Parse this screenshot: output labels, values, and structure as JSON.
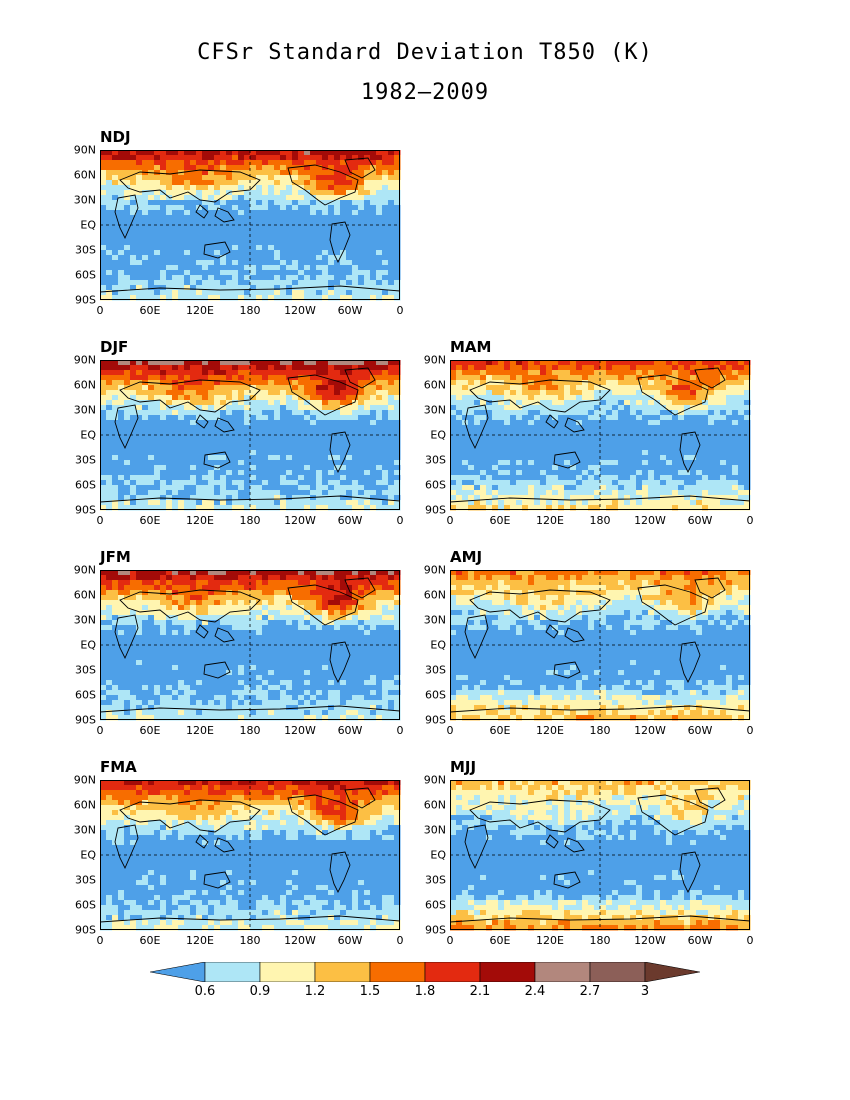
{
  "title": {
    "line1": "CFSr Standard Deviation T850 (K)",
    "line2": "1982–2009"
  },
  "axes": {
    "lat_ticks": [
      "90N",
      "60N",
      "30N",
      "EQ",
      "30S",
      "60S",
      "90S"
    ],
    "lon_ticks": [
      "0",
      "60E",
      "120E",
      "180",
      "120W",
      "60W",
      "0"
    ]
  },
  "panels": [
    {
      "label": "NDJ",
      "warmth": 0.9,
      "south_band": 0.3
    },
    {
      "label": "DJF",
      "warmth": 1.0,
      "south_band": 0.3
    },
    {
      "label": "MAM",
      "warmth": 0.75,
      "south_band": 0.55
    },
    {
      "label": "JFM",
      "warmth": 0.95,
      "south_band": 0.3
    },
    {
      "label": "AMJ",
      "warmth": 0.6,
      "south_band": 0.75
    },
    {
      "label": "FMA",
      "warmth": 0.85,
      "south_band": 0.35
    },
    {
      "label": "MJJ",
      "warmth": 0.45,
      "south_band": 0.9
    }
  ],
  "colorbar": {
    "labels": [
      "0.6",
      "0.9",
      "1.2",
      "1.5",
      "1.8",
      "2.1",
      "2.4",
      "2.7",
      "3"
    ],
    "colors": [
      "#4ea0e8",
      "#aee6f6",
      "#fff5b0",
      "#fcbf44",
      "#f76d00",
      "#e32a10",
      "#a30b08",
      "#b2877d",
      "#8c5f58",
      "#6b3a2d"
    ]
  }
}
